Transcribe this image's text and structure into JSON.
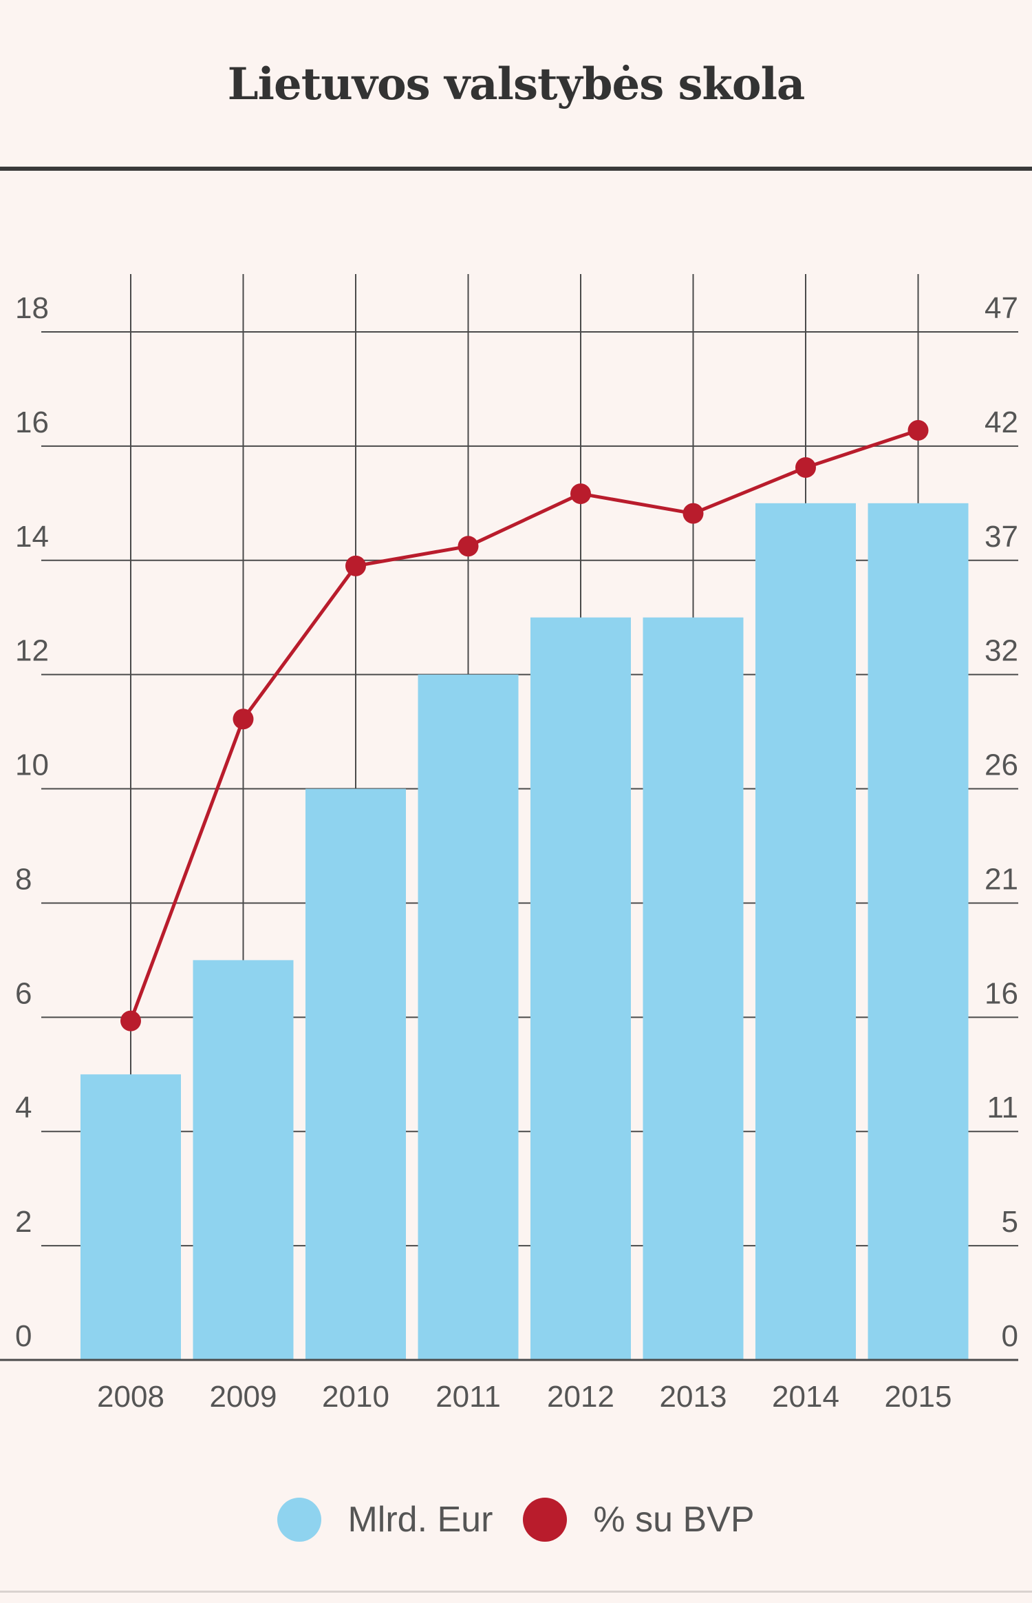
{
  "title": "Lietuvos valstybės skola",
  "colors": {
    "bars": "#8fd3ef",
    "line": "#b91c2c",
    "grid": "#4a4a4a",
    "background": "#fcf4f1"
  },
  "legend": [
    {
      "label": "Mlrd. Eur",
      "color": "#8fd3ef"
    },
    {
      "label": "% su BVP",
      "color": "#b91c2c"
    }
  ],
  "chart_data": {
    "type": "bar",
    "title": "Lietuvos valstybės skola",
    "categories": [
      "2008",
      "2009",
      "2010",
      "2011",
      "2012",
      "2013",
      "2014",
      "2015"
    ],
    "series": [
      {
        "name": "Mlrd. Eur",
        "type": "bar",
        "axis": "left",
        "values": [
          5,
          7,
          10,
          12,
          13,
          13,
          15,
          15
        ]
      },
      {
        "name": "% su BVP",
        "type": "line",
        "axis": "right",
        "values": [
          15.5,
          29.3,
          36.3,
          37.2,
          39.6,
          38.7,
          40.8,
          42.5
        ]
      }
    ],
    "y_left": {
      "ticks": [
        "0",
        "2",
        "4",
        "6",
        "8",
        "10",
        "12",
        "14",
        "16",
        "18"
      ],
      "min": 0,
      "max": 18
    },
    "y_right": {
      "ticks": [
        "0",
        "5",
        "11",
        "16",
        "21",
        "26",
        "32",
        "37",
        "42",
        "47"
      ],
      "min": 0,
      "max": 47
    },
    "grid": true,
    "legend_position": "bottom-center"
  }
}
